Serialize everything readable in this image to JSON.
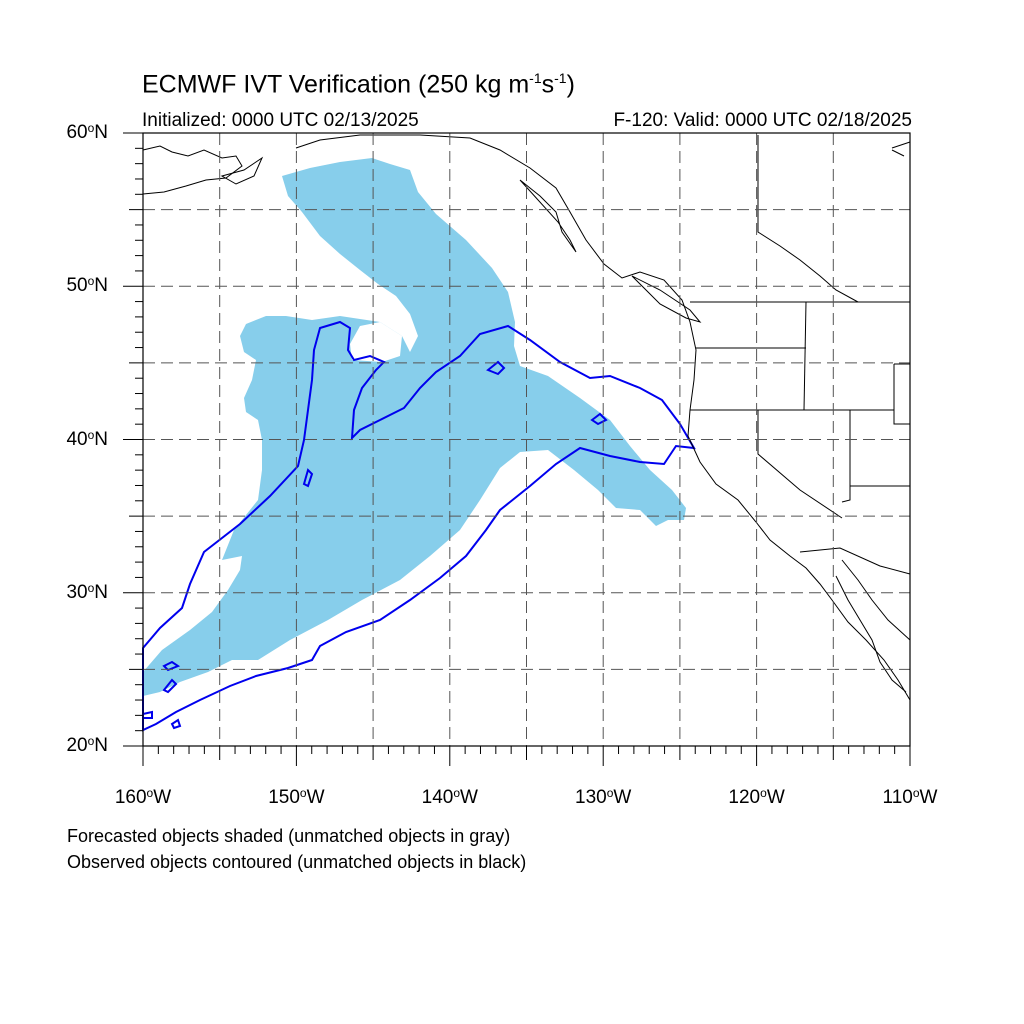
{
  "title": {
    "main": "ECMWF IVT Verification (250 kg m",
    "exp1": "-1",
    "mid": "s",
    "exp2": "-1",
    "end": ")"
  },
  "subtitle": {
    "initialized": "Initialized: 0000 UTC 02/13/2025",
    "valid": "F-120: Valid: 0000 UTC 02/18/2025"
  },
  "axes": {
    "lat_labels": [
      {
        "value": "60",
        "suffix": "N"
      },
      {
        "value": "50",
        "suffix": "N"
      },
      {
        "value": "40",
        "suffix": "N"
      },
      {
        "value": "30",
        "suffix": "N"
      },
      {
        "value": "20",
        "suffix": "N"
      }
    ],
    "lon_labels": [
      {
        "value": "160",
        "suffix": "W"
      },
      {
        "value": "150",
        "suffix": "W"
      },
      {
        "value": "140",
        "suffix": "W"
      },
      {
        "value": "130",
        "suffix": "W"
      },
      {
        "value": "120",
        "suffix": "W"
      },
      {
        "value": "110",
        "suffix": "W"
      }
    ],
    "lat_range": [
      20,
      60
    ],
    "lon_range": [
      -160,
      -110
    ],
    "grid": "dashed every 5 degrees"
  },
  "legend_notes": [
    "Forecasted objects shaded (unmatched objects in gray)",
    "Observed objects contoured (unmatched objects in black)"
  ],
  "colors": {
    "forecast_fill": "#87ceeb",
    "observed_contour": "#0000ee",
    "coastline": "#000000",
    "grid": "#555555"
  }
}
